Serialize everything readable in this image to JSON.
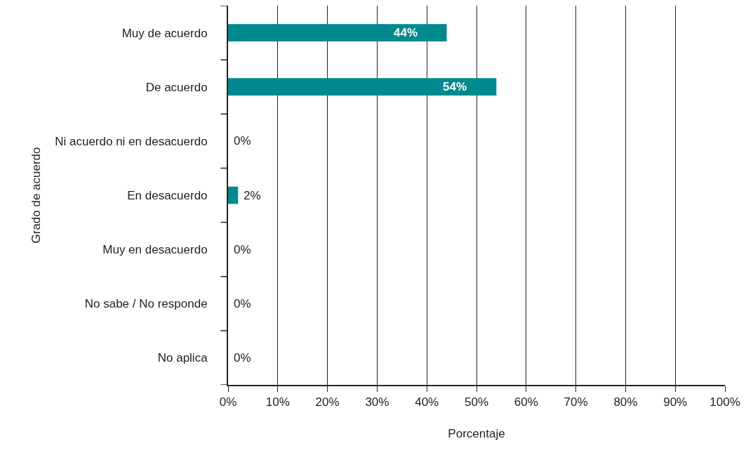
{
  "chart_data": {
    "type": "bar",
    "orientation": "horizontal",
    "xlabel": "Porcentaje",
    "ylabel": "Grado de acuerdo",
    "categories": [
      "Muy de acuerdo",
      "De acuerdo",
      "Ni acuerdo ni en desacuerdo",
      "En desacuerdo",
      "Muy en desacuerdo",
      "No sabe / No responde",
      "No aplica"
    ],
    "values": [
      44,
      54,
      0,
      2,
      0,
      0,
      0
    ],
    "value_labels": [
      "44%",
      "54%",
      "0%",
      "2%",
      "0%",
      "0%",
      "0%"
    ],
    "color": "#00898f",
    "xlim": [
      0,
      100
    ],
    "xticks": [
      {
        "value": 0,
        "label": "0%"
      },
      {
        "value": 10,
        "label": "10%"
      },
      {
        "value": 20,
        "label": "20%"
      },
      {
        "value": 30,
        "label": "30%"
      },
      {
        "value": 40,
        "label": "40%"
      },
      {
        "value": 50,
        "label": "50%"
      },
      {
        "value": 60,
        "label": "60%"
      },
      {
        "value": 70,
        "label": "70%"
      },
      {
        "value": 80,
        "label": "80%"
      },
      {
        "value": 90,
        "label": "90%"
      },
      {
        "value": 100,
        "label": "100%"
      }
    ],
    "grid": "x"
  }
}
